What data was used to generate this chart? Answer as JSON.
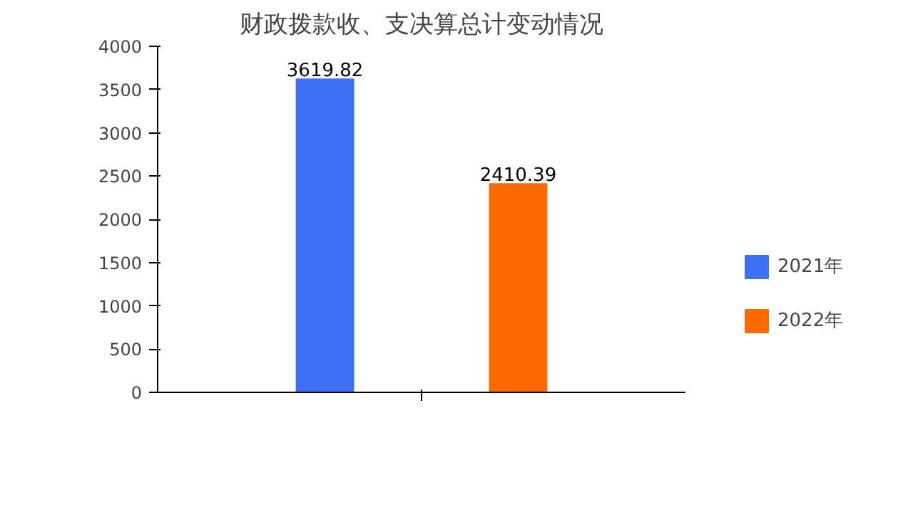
{
  "chart_data": {
    "type": "bar",
    "title": "财政拨款收、支决算总计变动情况",
    "categories": [
      null
    ],
    "series": [
      {
        "name": "2021年",
        "color": "#3f6ff5",
        "values": [
          3619.82
        ]
      },
      {
        "name": "2022年",
        "color": "#ff6a00",
        "values": [
          2410.39
        ]
      }
    ],
    "ylim": [
      0,
      4000
    ],
    "yticks": [
      0,
      500,
      1000,
      1500,
      2000,
      2500,
      3000,
      3500,
      4000
    ],
    "data_labels": true,
    "grid": false,
    "legend": "right"
  }
}
